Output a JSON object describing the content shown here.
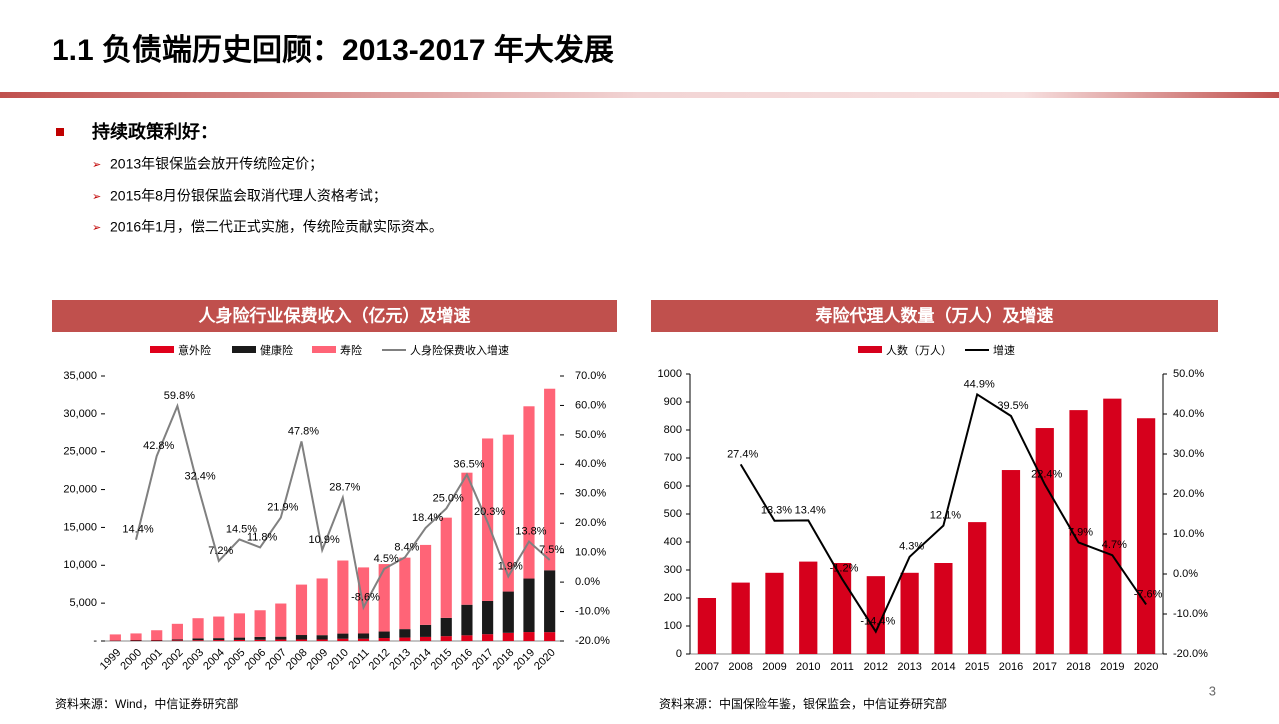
{
  "title": "1.1 负债端历史回顾：2013-2017 年大发展",
  "bullet_heading": "持续政策利好：",
  "bullets": [
    "2013年银保监会放开传统险定价；",
    "2015年8月份银保监会取消代理人资格考试；",
    "2016年1月，偿二代正式实施，传统险贡献实际资本。"
  ],
  "page_number": "3",
  "chart_data": [
    {
      "type": "combo",
      "title": "人身险行业保费收入（亿元）及增速",
      "source": "资料来源：Wind，中信证券研究部",
      "categories": [
        "1999",
        "2000",
        "2001",
        "2002",
        "2003",
        "2004",
        "2005",
        "2006",
        "2007",
        "2008",
        "2009",
        "2010",
        "2011",
        "2012",
        "2013",
        "2014",
        "2015",
        "2016",
        "2017",
        "2018",
        "2019",
        "2020"
      ],
      "series": [
        {
          "name": "意外险",
          "type": "bar",
          "color": "#e0001b",
          "values": [
            50,
            60,
            70,
            80,
            100,
            120,
            140,
            160,
            190,
            200,
            200,
            300,
            300,
            390,
            450,
            540,
            640,
            750,
            900,
            1080,
            1180,
            1170
          ]
        },
        {
          "name": "健康险",
          "type": "bar",
          "color": "#1a1a1a",
          "values": [
            40,
            70,
            60,
            120,
            240,
            260,
            310,
            380,
            380,
            590,
            570,
            680,
            690,
            860,
            1120,
            1590,
            2410,
            4040,
            4390,
            5450,
            7070,
            8170
          ]
        },
        {
          "name": "寿险",
          "type": "bar",
          "color": "#ff6477",
          "values": [
            780,
            870,
            1290,
            2070,
            2670,
            2850,
            3200,
            3520,
            4380,
            6660,
            7490,
            9650,
            8730,
            8910,
            9440,
            10560,
            13240,
            17440,
            21460,
            20720,
            22750,
            23980
          ]
        },
        {
          "name": "人身险保费收入增速",
          "type": "line",
          "axis": "y2",
          "color": "#808080",
          "values": [
            null,
            14.4,
            42.8,
            59.8,
            32.4,
            7.2,
            14.5,
            11.8,
            21.9,
            47.8,
            10.9,
            28.7,
            -8.6,
            4.5,
            8.4,
            18.4,
            25.0,
            36.5,
            20.3,
            1.9,
            13.8,
            7.5
          ],
          "value_labels": [
            null,
            "14.4%",
            "42.8%",
            "59.8%",
            "32.4%",
            "7.2%",
            "14.5%",
            "11.8%",
            "21.9%",
            "47.8%",
            "10.9%",
            "28.7%",
            "-8.6%",
            "4.5%",
            "8.4%",
            "18.4%",
            "25.0%",
            "36.5%",
            "20.3%",
            "1.9%",
            "13.8%",
            "7.5%"
          ]
        }
      ],
      "ylim": [
        0,
        35000
      ],
      "yticks": [
        {
          "value": 0,
          "label": "-"
        },
        {
          "value": 5000,
          "label": "5,000"
        },
        {
          "value": 10000,
          "label": "10,000"
        },
        {
          "value": 15000,
          "label": "15,000"
        },
        {
          "value": 20000,
          "label": "20,000"
        },
        {
          "value": 25000,
          "label": "25,000"
        },
        {
          "value": 30000,
          "label": "30,000"
        },
        {
          "value": 35000,
          "label": "35,000"
        }
      ],
      "y2lim": [
        -20,
        70
      ],
      "y2ticks": [
        {
          "value": -20,
          "label": "-20.0%"
        },
        {
          "value": -10,
          "label": "-10.0%"
        },
        {
          "value": 0,
          "label": "0.0%"
        },
        {
          "value": 10,
          "label": "10.0%"
        },
        {
          "value": 20,
          "label": "20.0%"
        },
        {
          "value": 30,
          "label": "30.0%"
        },
        {
          "value": 40,
          "label": "40.0%"
        },
        {
          "value": 50,
          "label": "50.0%"
        },
        {
          "value": 60,
          "label": "60.0%"
        },
        {
          "value": 70,
          "label": "70.0%"
        }
      ],
      "x_label_rotation": -45
    },
    {
      "type": "combo",
      "title": "寿险代理人数量（万人）及增速",
      "source": "资料来源：中国保险年鉴，银保监会，中信证券研究部",
      "categories": [
        "2007",
        "2008",
        "2009",
        "2010",
        "2011",
        "2012",
        "2013",
        "2014",
        "2015",
        "2016",
        "2017",
        "2018",
        "2019",
        "2020"
      ],
      "series": [
        {
          "name": "人数（万人）",
          "type": "bar",
          "color": "#d6001c",
          "values": [
            200,
            255,
            290,
            330,
            325,
            278,
            290,
            325,
            471,
            657,
            807,
            871,
            912,
            842
          ]
        },
        {
          "name": "增速",
          "type": "line",
          "axis": "y2",
          "color": "#000000",
          "values": [
            null,
            27.4,
            13.3,
            13.4,
            -1.2,
            -14.4,
            4.3,
            12.1,
            44.9,
            39.5,
            22.4,
            7.9,
            4.7,
            -7.6
          ],
          "value_labels": [
            null,
            "27.4%",
            "13.3%",
            "13.4%",
            "-1.2%",
            "-14.4%",
            "4.3%",
            "12.1%",
            "44.9%",
            "39.5%",
            "22.4%",
            "7.9%",
            "4.7%",
            "-7.6%"
          ]
        }
      ],
      "ylim": [
        0,
        1000
      ],
      "yticks": [
        0,
        100,
        200,
        300,
        400,
        500,
        600,
        700,
        800,
        900,
        1000
      ],
      "y2lim": [
        -20,
        50
      ],
      "y2ticks": [
        {
          "value": -20,
          "label": "-20.0%"
        },
        {
          "value": -10,
          "label": "-10.0%"
        },
        {
          "value": 0,
          "label": "0.0%"
        },
        {
          "value": 10,
          "label": "10.0%"
        },
        {
          "value": 20,
          "label": "20.0%"
        },
        {
          "value": 30,
          "label": "30.0%"
        },
        {
          "value": 40,
          "label": "40.0%"
        },
        {
          "value": 50,
          "label": "50.0%"
        }
      ],
      "x_label_rotation": 0
    }
  ]
}
